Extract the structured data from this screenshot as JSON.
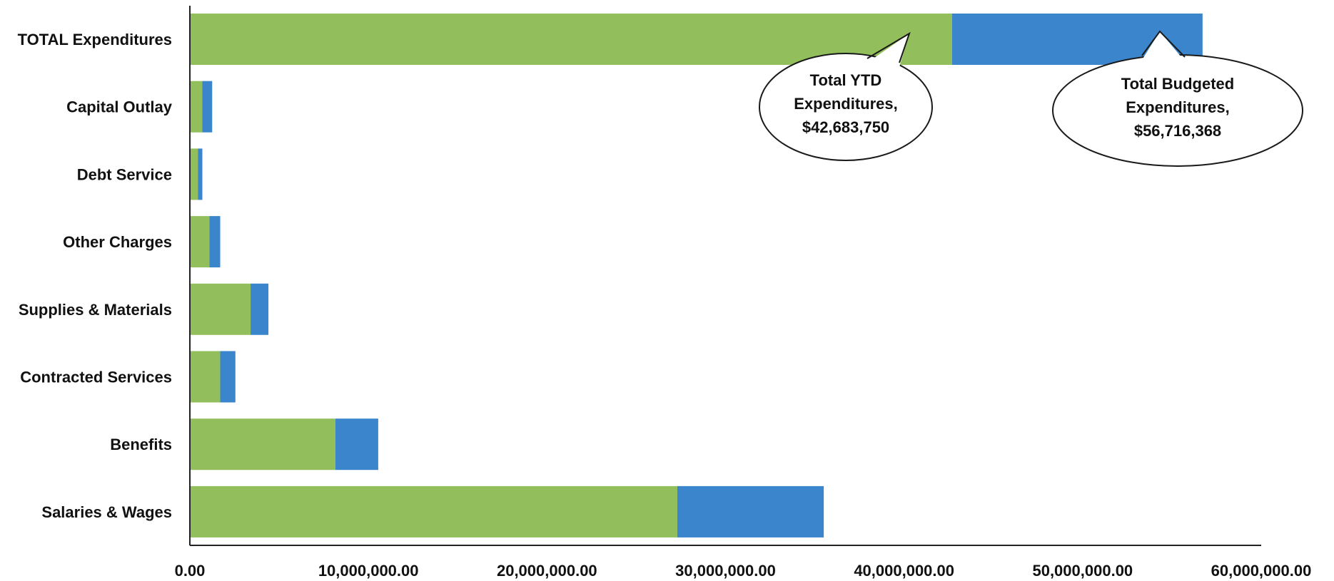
{
  "chart_data": {
    "type": "bar",
    "orientation": "horizontal",
    "stacked": true,
    "categories": [
      "TOTAL Expenditures",
      "Capital Outlay",
      "Debt Service",
      "Other Charges",
      "Supplies & Materials",
      "Contracted Services",
      "Benefits",
      "Salaries & Wages"
    ],
    "series": [
      {
        "color": "#92BE5B",
        "values": [
          42683750,
          700000,
          450000,
          1100000,
          3400000,
          1700000,
          8150000,
          27300000
        ]
      },
      {
        "color": "#3A85CC",
        "values": [
          14032618,
          550000,
          250000,
          600000,
          1000000,
          850000,
          2400000,
          8200000
        ]
      }
    ],
    "xlim": [
      0,
      60000000
    ],
    "x_ticks": [
      "0.00",
      "10,000,000.00",
      "20,000,000.00",
      "30,000,000.00",
      "40,000,000.00",
      "50,000,000.00",
      "60,000,000.00"
    ],
    "grid": false,
    "legend": "none",
    "annotations": [
      {
        "series": 0,
        "lines": [
          "Total YTD",
          "Expenditures,",
          "$42,683,750"
        ]
      },
      {
        "series": 1,
        "lines": [
          "Total Budgeted",
          "Expenditures,",
          "$56,716,368"
        ]
      }
    ]
  }
}
